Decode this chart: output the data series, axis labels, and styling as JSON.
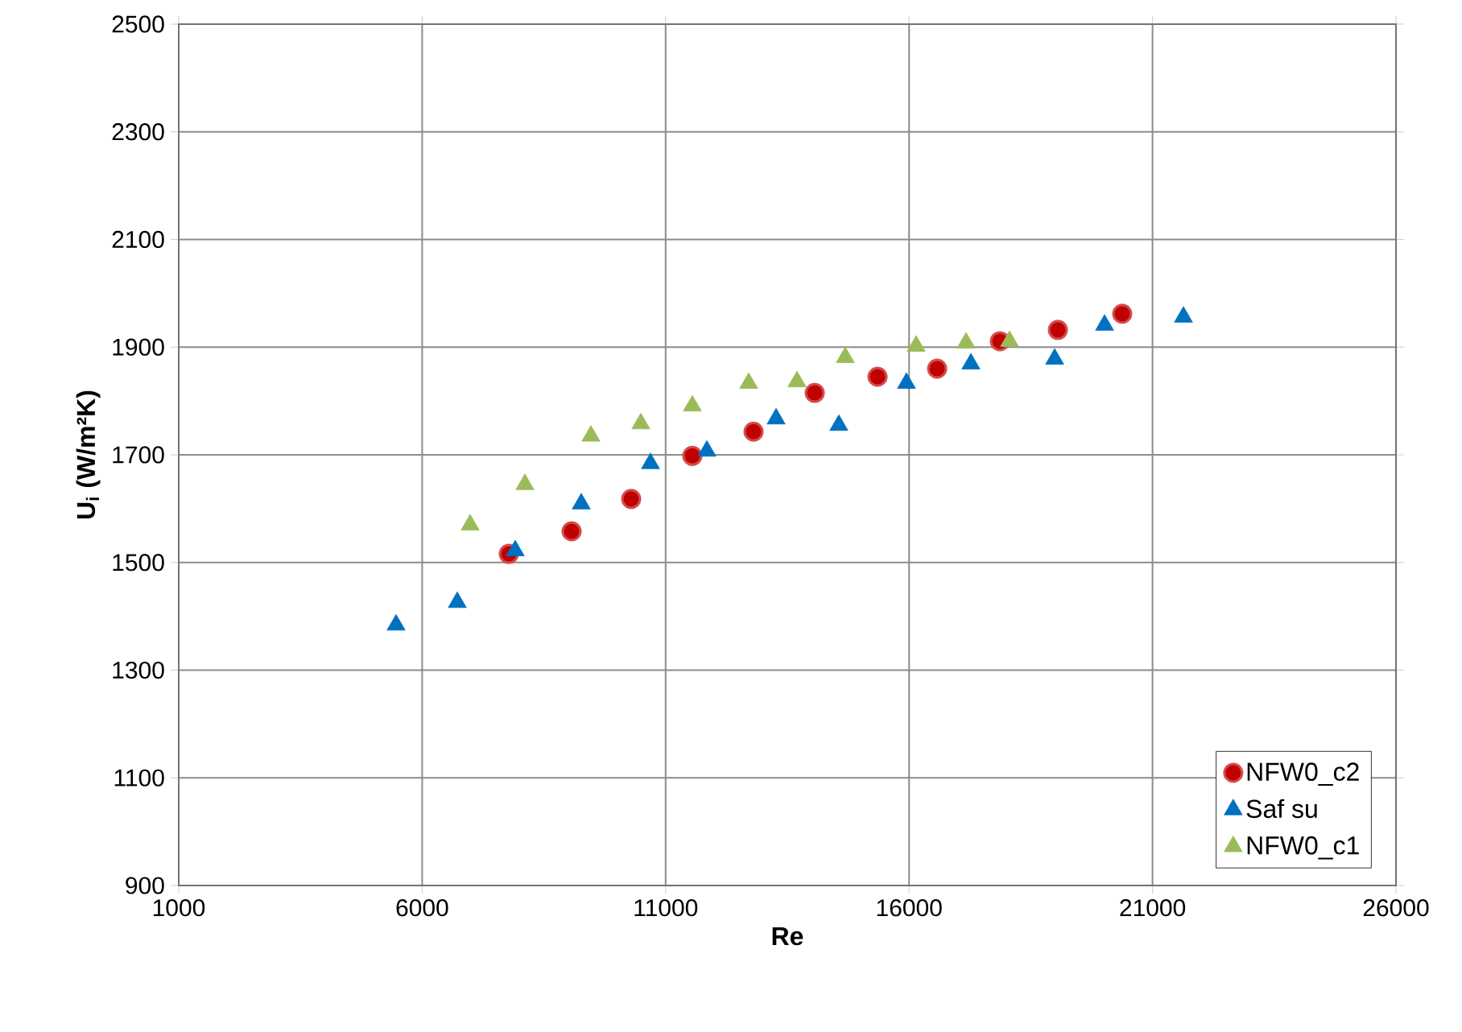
{
  "chart_data": {
    "type": "scatter",
    "xlabel": "Re",
    "ylabel": "U$_{i}$ (W/m²K)",
    "xlim": [
      1000,
      26000
    ],
    "xticks": [
      1000,
      6000,
      11000,
      16000,
      21000,
      26000
    ],
    "ylim": [
      900,
      2500
    ],
    "yticks": [
      900,
      1100,
      1300,
      1500,
      1700,
      1900,
      2100,
      2300,
      2500
    ],
    "grid": true,
    "legend": "bottom right",
    "series": [
      {
        "name": "NFW0_c2",
        "color": "#c00000",
        "marker": "circle",
        "x": [
          7779,
          9069,
          10292,
          11549,
          12806,
          14062,
          15352,
          16576,
          17865,
          19056,
          20378
        ],
        "values": [
          1516,
          1558,
          1618,
          1698,
          1743,
          1815,
          1845,
          1860,
          1911,
          1932,
          1962
        ]
      },
      {
        "name": "Saf su",
        "color": "#0070c0",
        "marker": "triangle",
        "x": [
          5464,
          6721,
          7911,
          9267,
          10689,
          11847,
          13269,
          14558,
          15947,
          17270,
          18990,
          20015,
          21635
        ],
        "values": [
          1384,
          1426,
          1522,
          1609,
          1684,
          1707,
          1767,
          1755,
          1833,
          1869,
          1878,
          1941,
          1956
        ]
      },
      {
        "name": "NFW0_c1",
        "color": "#9bbb59",
        "marker": "triangle",
        "x": [
          6985,
          8110,
          9466,
          10491,
          11549,
          12706,
          13698,
          14690,
          16145,
          17171,
          18063
        ],
        "values": [
          1570,
          1645,
          1735,
          1758,
          1791,
          1833,
          1836,
          1881,
          1902,
          1908,
          1911
        ]
      }
    ]
  }
}
